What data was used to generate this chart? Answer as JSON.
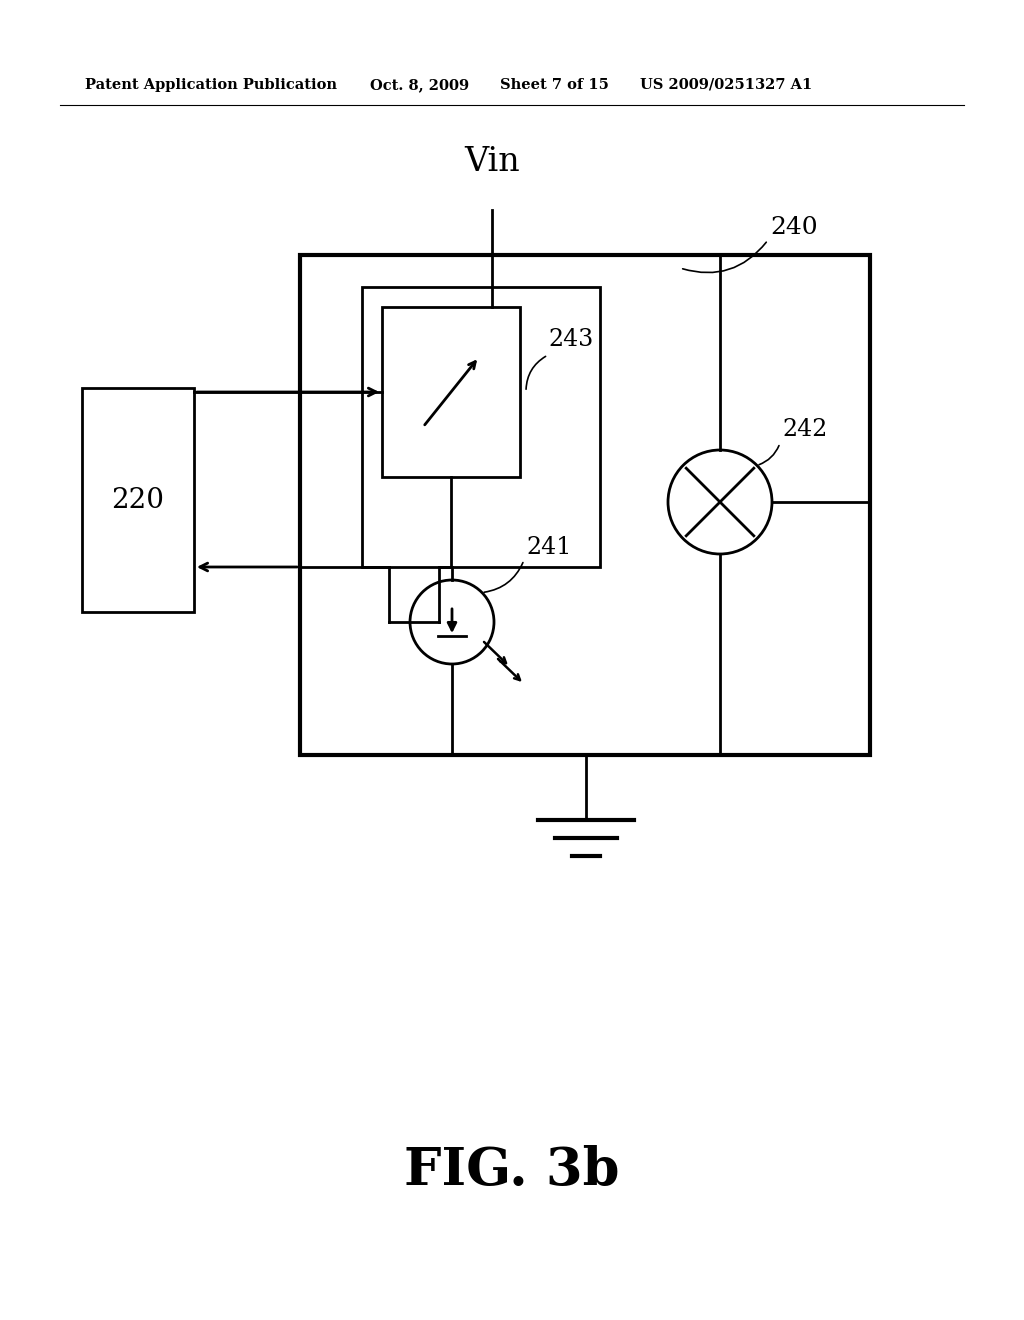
{
  "bg_color": "#ffffff",
  "line_color": "#000000",
  "header_text": "Patent Application Publication",
  "header_date": "Oct. 8, 2009",
  "header_sheet": "Sheet 7 of 15",
  "header_patent": "US 2009/0251327 A1",
  "figure_label": "FIG. 3b",
  "label_220": "220",
  "label_240": "240",
  "label_241": "241",
  "label_242": "242",
  "label_243": "243",
  "vin_label": "Vin",
  "lw": 2.0
}
